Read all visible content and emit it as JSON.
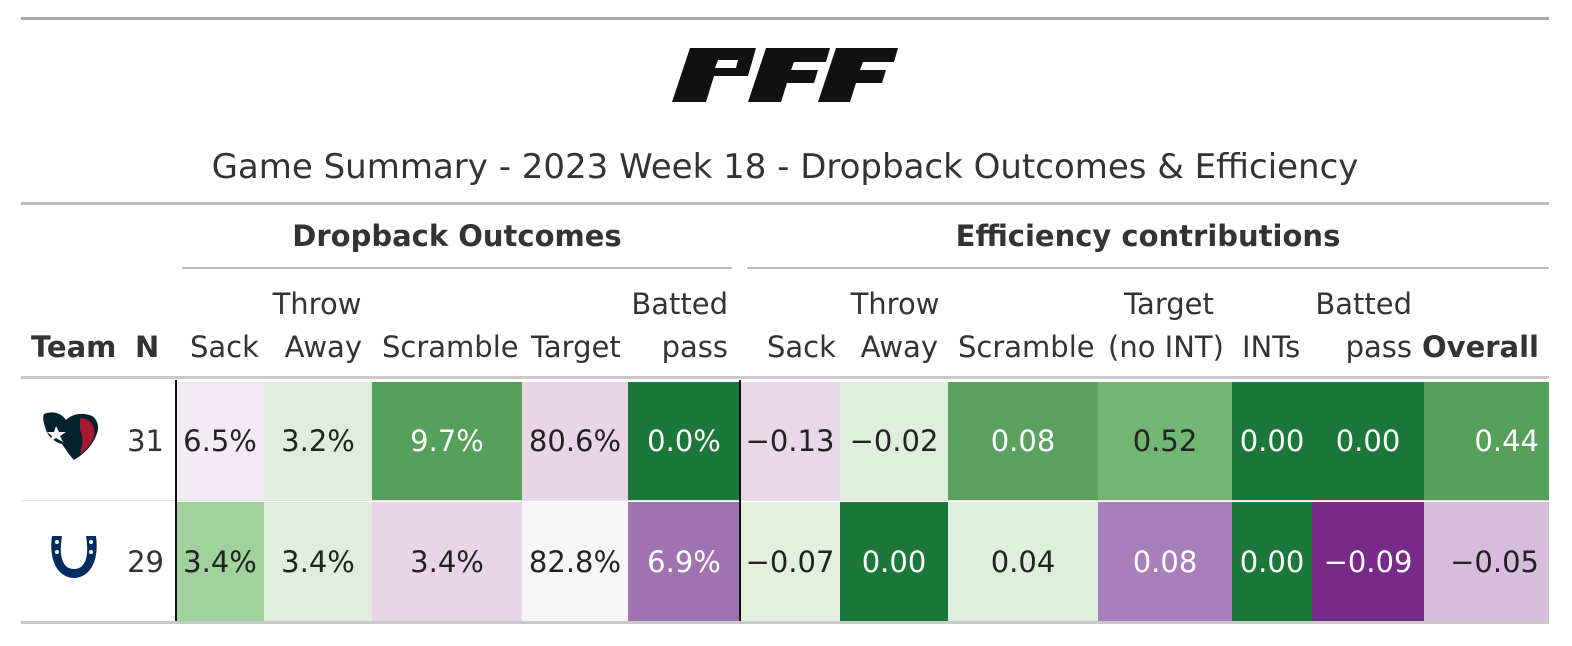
{
  "brand": {
    "logo_text": "PFF"
  },
  "title": "Game Summary - 2023 Week 18 - Dropback Outcomes & Efficiency",
  "spanners": {
    "dropback": "Dropback Outcomes",
    "efficiency": "Efficiency contributions"
  },
  "headers": {
    "team": "Team",
    "n": "N",
    "do_sack": "Sack",
    "do_throw_1": "Throw",
    "do_throw_2": "Away",
    "do_scramble": "Scramble",
    "do_target": "Target",
    "do_batted_1": "Batted",
    "do_batted_2": "pass",
    "ef_sack": "Sack",
    "ef_throw_1": "Throw",
    "ef_throw_2": "Away",
    "ef_scramble": "Scramble",
    "ef_target_1": "Target",
    "ef_target_2": "(no INT)",
    "ef_ints": "INTs",
    "ef_batted_1": "Batted",
    "ef_batted_2": "pass",
    "ef_overall": "Overall"
  },
  "rows": [
    {
      "team_icon": "texans-logo-icon",
      "n": "31",
      "dropback": {
        "sack": {
          "text": "6.5%",
          "bg": "#f3ebf3",
          "fg": "#222222"
        },
        "throw": {
          "text": "3.2%",
          "bg": "#e0efdd",
          "fg": "#222222"
        },
        "scramble": {
          "text": "9.7%",
          "bg": "#55a05b",
          "fg": "#ffffff"
        },
        "target": {
          "text": "80.6%",
          "bg": "#e8d6e8",
          "fg": "#222222"
        },
        "batted": {
          "text": "0.0%",
          "bg": "#1b783a",
          "fg": "#ffffff"
        }
      },
      "efficiency": {
        "sack": {
          "text": "−0.13",
          "bg": "#e8d8ea",
          "fg": "#222222"
        },
        "throw": {
          "text": "−0.02",
          "bg": "#def0db",
          "fg": "#222222"
        },
        "scramble": {
          "text": "0.08",
          "bg": "#5aa25e",
          "fg": "#ffffff"
        },
        "target": {
          "text": "0.52",
          "bg": "#72b673",
          "fg": "#222222"
        },
        "ints": {
          "text": "0.00",
          "bg": "#1b783a",
          "fg": "#ffffff"
        },
        "batted": {
          "text": "0.00",
          "bg": "#1b783a",
          "fg": "#ffffff"
        },
        "overall": {
          "text": "0.44",
          "bg": "#55a05b",
          "fg": "#ffffff"
        }
      }
    },
    {
      "team_icon": "colts-horseshoe-icon",
      "n": "29",
      "dropback": {
        "sack": {
          "text": "3.4%",
          "bg": "#a1d29d",
          "fg": "#222222"
        },
        "throw": {
          "text": "3.4%",
          "bg": "#e0efdd",
          "fg": "#222222"
        },
        "scramble": {
          "text": "3.4%",
          "bg": "#e8d6e8",
          "fg": "#222222"
        },
        "target": {
          "text": "82.8%",
          "bg": "#f6f6f6",
          "fg": "#222222"
        },
        "batted": {
          "text": "6.9%",
          "bg": "#a072b2",
          "fg": "#ffffff"
        }
      },
      "efficiency": {
        "sack": {
          "text": "−0.07",
          "bg": "#e2f0de",
          "fg": "#222222"
        },
        "throw": {
          "text": "0.00",
          "bg": "#1b783a",
          "fg": "#ffffff"
        },
        "scramble": {
          "text": "0.04",
          "bg": "#def0db",
          "fg": "#222222"
        },
        "target": {
          "text": "0.08",
          "bg": "#a87fbb",
          "fg": "#ffffff"
        },
        "ints": {
          "text": "0.00",
          "bg": "#1b783a",
          "fg": "#ffffff"
        },
        "batted": {
          "text": "−0.09",
          "bg": "#772a87",
          "fg": "#ffffff"
        },
        "overall": {
          "text": "−0.05",
          "bg": "#d8bcdd",
          "fg": "#222222"
        }
      }
    }
  ]
}
